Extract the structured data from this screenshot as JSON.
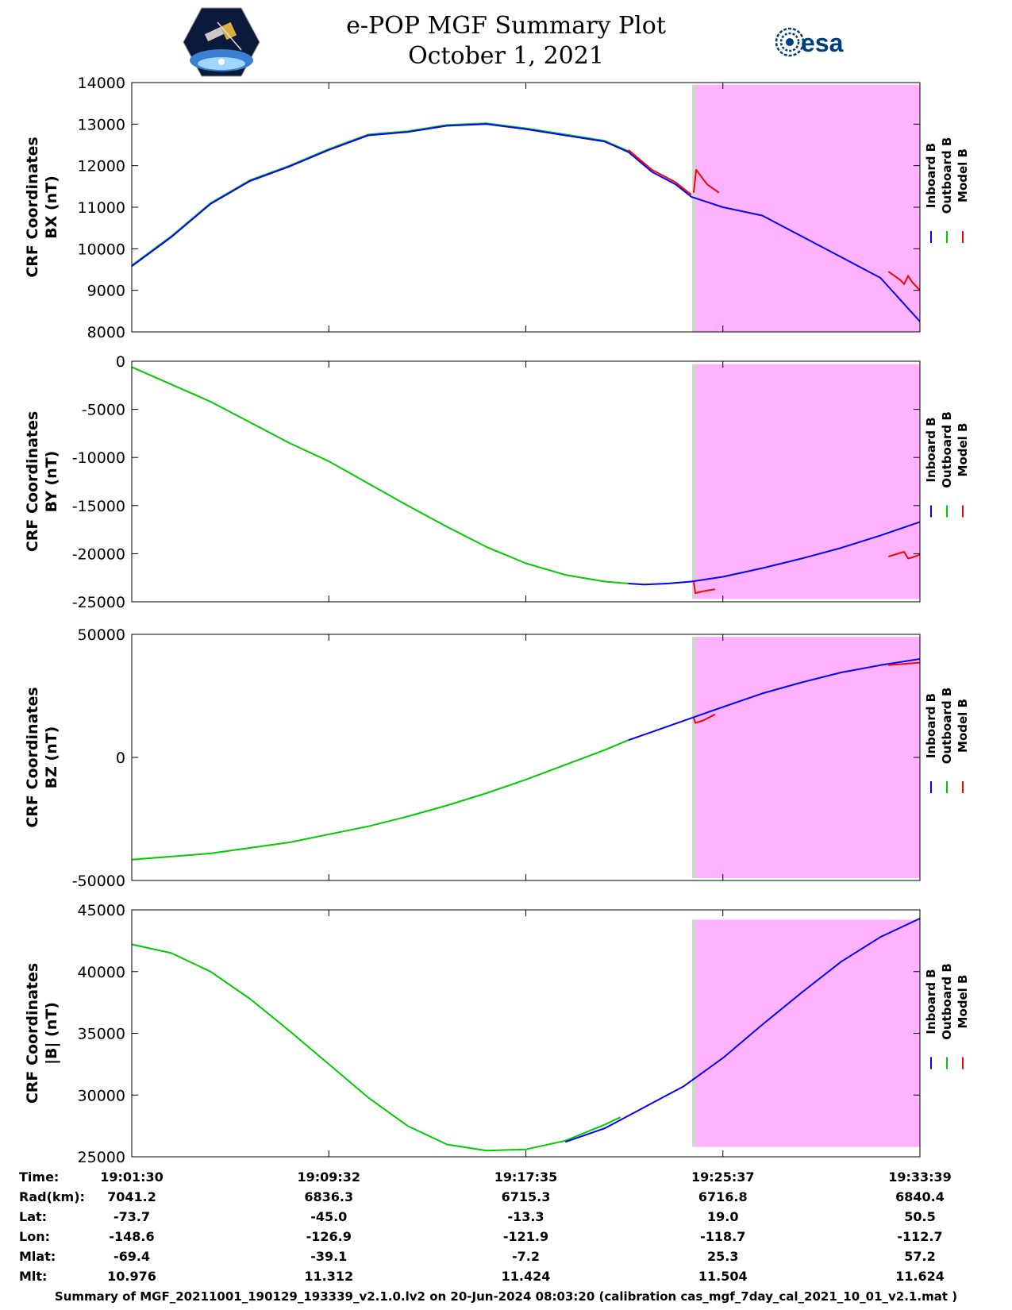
{
  "header": {
    "title": "e-POP MGF Summary Plot",
    "date": "October 1, 2021",
    "left_logo": "cassiope-satellite-logo",
    "right_logo": "esa-logo",
    "right_logo_text": "esa"
  },
  "colors": {
    "inboard": "#0000ff",
    "outboard": "#00cc00",
    "model": "#ff0000",
    "shade_gray": "#d3d3d3",
    "shade_magenta": "#ffb3ff"
  },
  "legend": [
    "Inboard B",
    "Outboard B",
    "Model B"
  ],
  "chart_data": [
    {
      "type": "line",
      "ylabel": [
        "CRF Coordinates",
        "BX (nT)"
      ],
      "ylim": [
        8000,
        14000
      ],
      "yticks": [
        "8000",
        "9000",
        "10000",
        "11000",
        "12000",
        "13000",
        "14000"
      ],
      "ytick_values": [
        8000,
        9000,
        10000,
        11000,
        12000,
        13000,
        14000
      ],
      "xlim": [
        0,
        1
      ],
      "shade": {
        "gray": [
          0.711,
          0.716
        ],
        "magenta": [
          0.716,
          1.0
        ],
        "ymax": 13950
      },
      "series": [
        {
          "key": "outboard",
          "x": [
            0,
            0.05,
            0.1,
            0.15,
            0.2,
            0.25,
            0.3,
            0.35,
            0.4,
            0.45,
            0.5,
            0.55,
            0.6,
            0.63
          ],
          "y": [
            9600,
            10300,
            11100,
            11650,
            12000,
            12400,
            12750,
            12830,
            12980,
            13020,
            12900,
            12750,
            12600,
            12350
          ]
        },
        {
          "key": "inboard",
          "x": [
            0,
            0.05,
            0.1,
            0.15,
            0.2,
            0.25,
            0.3,
            0.35,
            0.4,
            0.45,
            0.5,
            0.55,
            0.6,
            0.63,
            0.66,
            0.69,
            0.71,
            0.75,
            0.8,
            0.85,
            0.9,
            0.95,
            1.0
          ],
          "y": [
            9580,
            10280,
            11080,
            11630,
            11980,
            12380,
            12730,
            12810,
            12960,
            13000,
            12880,
            12730,
            12580,
            12330,
            11850,
            11550,
            11250,
            11000,
            10800,
            10300,
            9800,
            9300,
            8250
          ]
        },
        {
          "key": "model",
          "x": [
            0.63,
            0.66,
            0.69,
            0.71
          ],
          "y": [
            12380,
            11900,
            11600,
            11300
          ]
        },
        {
          "key": "model",
          "x": [
            0.713,
            0.716,
            0.72,
            0.73,
            0.745
          ],
          "y": [
            11350,
            11900,
            11800,
            11550,
            11350
          ]
        },
        {
          "key": "model",
          "x": [
            0.96,
            0.975,
            0.98,
            0.985,
            0.99,
            1.0
          ],
          "y": [
            9450,
            9250,
            9150,
            9350,
            9200,
            9000
          ]
        }
      ]
    },
    {
      "type": "line",
      "ylabel": [
        "CRF Coordinates",
        "BY (nT)"
      ],
      "ylim": [
        -25000,
        0
      ],
      "yticks": [
        "-25000",
        "-20000",
        "-15000",
        "-10000",
        "-5000",
        "0"
      ],
      "ytick_values": [
        -25000,
        -20000,
        -15000,
        -10000,
        -5000,
        0
      ],
      "xlim": [
        0,
        1
      ],
      "shade": {
        "gray": [
          0.711,
          0.716
        ],
        "magenta": [
          0.716,
          1.0
        ],
        "ymax": -300,
        "ymin": -24700
      },
      "series": [
        {
          "key": "outboard",
          "x": [
            0,
            0.1,
            0.2,
            0.25,
            0.3,
            0.35,
            0.4,
            0.45,
            0.5,
            0.55,
            0.6,
            0.63
          ],
          "y": [
            -600,
            -4200,
            -8500,
            -10400,
            -12700,
            -15000,
            -17200,
            -19300,
            -21000,
            -22200,
            -22900,
            -23100
          ]
        },
        {
          "key": "inboard",
          "x": [
            0.63,
            0.65,
            0.68,
            0.71,
            0.75,
            0.8,
            0.85,
            0.9,
            0.95,
            1.0
          ],
          "y": [
            -23100,
            -23200,
            -23100,
            -22900,
            -22400,
            -21500,
            -20500,
            -19400,
            -18100,
            -16700
          ]
        },
        {
          "key": "model",
          "x": [
            0.713,
            0.715,
            0.725,
            0.74
          ],
          "y": [
            -22900,
            -24100,
            -23900,
            -23700
          ]
        },
        {
          "key": "model",
          "x": [
            0.96,
            0.98,
            0.985,
            0.99,
            1.0
          ],
          "y": [
            -20300,
            -19800,
            -20500,
            -20400,
            -20100
          ]
        }
      ]
    },
    {
      "type": "line",
      "ylabel": [
        "CRF Coordinates",
        "BZ (nT)"
      ],
      "ylim": [
        -50000,
        50000
      ],
      "yticks": [
        "-50000",
        "0",
        "50000"
      ],
      "ytick_values": [
        -50000,
        0,
        50000
      ],
      "xlim": [
        0,
        1
      ],
      "shade": {
        "gray": [
          0.711,
          0.716
        ],
        "magenta": [
          0.716,
          1.0
        ],
        "ymax": 49000,
        "ymin": -49000
      },
      "series": [
        {
          "key": "outboard",
          "x": [
            0,
            0.1,
            0.2,
            0.3,
            0.35,
            0.4,
            0.45,
            0.5,
            0.55,
            0.6,
            0.63
          ],
          "y": [
            -41500,
            -39000,
            -34500,
            -28000,
            -24000,
            -19500,
            -14500,
            -9000,
            -3000,
            3000,
            7000
          ]
        },
        {
          "key": "inboard",
          "x": [
            0.63,
            0.67,
            0.71,
            0.75,
            0.8,
            0.85,
            0.9,
            0.95,
            1.0
          ],
          "y": [
            7000,
            11500,
            16000,
            20500,
            26000,
            30500,
            34500,
            37500,
            40000
          ]
        },
        {
          "key": "model",
          "x": [
            0.713,
            0.715,
            0.725,
            0.74
          ],
          "y": [
            16000,
            14000,
            15000,
            17500
          ]
        },
        {
          "key": "model",
          "x": [
            0.96,
            0.98,
            1.0
          ],
          "y": [
            37500,
            38000,
            38500
          ]
        }
      ]
    },
    {
      "type": "line",
      "ylabel": [
        "CRF Coordinates",
        "|B| (nT)"
      ],
      "ylim": [
        25000,
        45000
      ],
      "yticks": [
        "25000",
        "30000",
        "35000",
        "40000",
        "45000"
      ],
      "ytick_values": [
        25000,
        30000,
        35000,
        40000,
        45000
      ],
      "xlim": [
        0,
        1
      ],
      "shade": {
        "gray": [
          0.711,
          0.716
        ],
        "magenta": [
          0.716,
          1.0
        ],
        "ymax": 44200,
        "ymin": 25800
      },
      "series": [
        {
          "key": "outboard",
          "x": [
            0,
            0.05,
            0.1,
            0.15,
            0.2,
            0.25,
            0.3,
            0.35,
            0.4,
            0.45,
            0.5,
            0.55,
            0.6,
            0.62
          ],
          "y": [
            42200,
            41500,
            40000,
            37800,
            35200,
            32500,
            29800,
            27500,
            26000,
            25500,
            25600,
            26300,
            27600,
            28200
          ]
        },
        {
          "key": "inboard",
          "x": [
            0.55,
            0.6,
            0.65,
            0.7,
            0.75,
            0.8,
            0.85,
            0.9,
            0.95,
            1.0
          ],
          "y": [
            26200,
            27300,
            29000,
            30700,
            33000,
            35700,
            38300,
            40800,
            42800,
            44300
          ]
        }
      ]
    }
  ],
  "x_axis": {
    "tick_positions": [
      0,
      0.25,
      0.5,
      0.75,
      1.0
    ],
    "row_labels": [
      "Time:",
      "Rad(km):",
      "Lat:",
      "Lon:",
      "Mlat:",
      "Mlt:"
    ],
    "columns": [
      [
        "19:01:30",
        "7041.2",
        "-73.7",
        "-148.6",
        "-69.4",
        "10.976"
      ],
      [
        "19:09:32",
        "6836.3",
        "-45.0",
        "-126.9",
        "-39.1",
        "11.312"
      ],
      [
        "19:17:35",
        "6715.3",
        "-13.3",
        "-121.9",
        "-7.2",
        "11.424"
      ],
      [
        "19:25:37",
        "6716.8",
        "19.0",
        "-118.7",
        "25.3",
        "11.504"
      ],
      [
        "19:33:39",
        "6840.4",
        "50.5",
        "-112.7",
        "57.2",
        "11.624"
      ]
    ]
  },
  "footer": "Summary of MGF_20211001_190129_193339_v2.1.0.lv2 on 20-Jun-2024 08:03:20 (calibration cas_mgf_7day_cal_2021_10_01_v2.1.mat )"
}
